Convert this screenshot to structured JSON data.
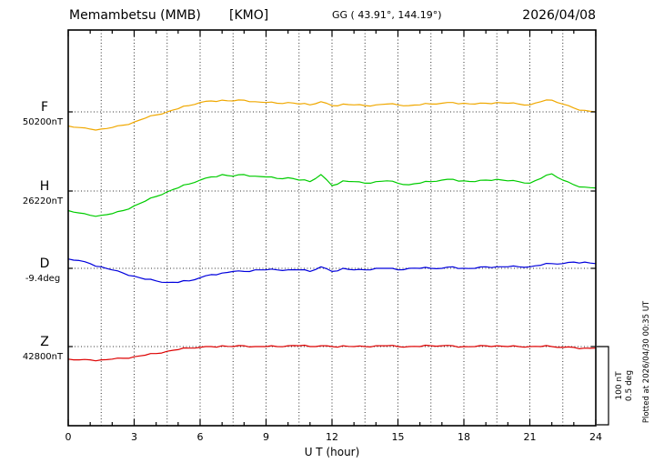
{
  "header": {
    "station": "Memambetsu (MMB)",
    "code": "[KMO]",
    "gg": "GG ( 43.91°, 144.19°)",
    "date": "2026/04/08"
  },
  "xaxis": {
    "label": "U T (hour)",
    "ticks": [
      0,
      3,
      6,
      9,
      12,
      15,
      18,
      21,
      24
    ],
    "minor_step_hours": 1,
    "grid_step_hours": 1.5
  },
  "scalebar": {
    "line1": "100 nT",
    "line2": "0.5 deg"
  },
  "footer_rotated": "Plotted at 2026/04/30 00:35 UT",
  "chart_data": {
    "type": "line",
    "title": "Memambetsu (MMB) [KMO] magnetogram 2026/04/08",
    "xlabel": "U T (hour)",
    "x_unit": "hour UT",
    "x_range": [
      0,
      24
    ],
    "x_step": 0.5,
    "grid": "dotted",
    "scale": {
      "nT_per_div": 100,
      "deg_per_div": 0.5
    },
    "series": [
      {
        "id": "F",
        "label": "F",
        "base_label": "50200nT",
        "unit": "nT",
        "color": "#f0a800",
        "baseline_value": 50200,
        "offsets": [
          -18,
          -20,
          -22,
          -22,
          -20,
          -17,
          -13,
          -8,
          -4,
          0,
          4,
          8,
          12,
          14,
          15,
          14,
          15,
          13,
          12,
          11,
          12,
          10,
          9,
          13,
          8,
          10,
          9,
          8,
          9,
          10,
          9,
          8,
          9,
          10,
          11,
          12,
          11,
          10,
          11,
          12,
          11,
          10,
          9,
          13,
          15,
          10,
          5,
          2,
          0
        ]
      },
      {
        "id": "H",
        "label": "H",
        "base_label": "26220nT",
        "unit": "nT",
        "color": "#00cc00",
        "baseline_value": 26220,
        "offsets": [
          -25,
          -28,
          -31,
          -31,
          -29,
          -25,
          -19,
          -13,
          -7,
          -1,
          4,
          9,
          14,
          18,
          21,
          19,
          21,
          19,
          18,
          16,
          17,
          14,
          12,
          21,
          7,
          13,
          12,
          10,
          12,
          13,
          10,
          8,
          10,
          12,
          14,
          15,
          13,
          12,
          14,
          15,
          13,
          12,
          10,
          16,
          22,
          14,
          8,
          5,
          4
        ]
      },
      {
        "id": "D",
        "label": "D",
        "base_label": "-9.4deg",
        "unit": "deg",
        "color": "#0000dd",
        "baseline_value": -9.4,
        "offsets": [
          0.06,
          0.05,
          0.03,
          0.01,
          -0.01,
          -0.03,
          -0.05,
          -0.07,
          -0.08,
          -0.09,
          -0.09,
          -0.08,
          -0.06,
          -0.04,
          -0.03,
          -0.02,
          -0.02,
          -0.01,
          -0.01,
          -0.01,
          -0.01,
          -0.01,
          -0.02,
          0.01,
          -0.02,
          0.0,
          -0.01,
          -0.01,
          0.0,
          0.0,
          -0.01,
          0.0,
          0.0,
          0.0,
          0.0,
          0.01,
          0.0,
          0.0,
          0.01,
          0.01,
          0.01,
          0.01,
          0.01,
          0.02,
          0.03,
          0.03,
          0.04,
          0.04,
          0.03
        ]
      },
      {
        "id": "Z",
        "label": "Z",
        "base_label": "42800nT",
        "unit": "nT",
        "color": "#dd0000",
        "baseline_value": 42800,
        "offsets": [
          -16,
          -17,
          -17,
          -17,
          -16,
          -15,
          -13,
          -11,
          -9,
          -6,
          -4,
          -2,
          -1,
          0,
          1,
          0,
          1,
          0,
          0,
          0,
          1,
          1,
          0,
          1,
          0,
          1,
          0,
          0,
          1,
          1,
          0,
          0,
          0,
          1,
          1,
          1,
          0,
          0,
          1,
          1,
          0,
          0,
          0,
          0,
          0,
          -1,
          -1,
          -2,
          -2
        ]
      }
    ]
  }
}
